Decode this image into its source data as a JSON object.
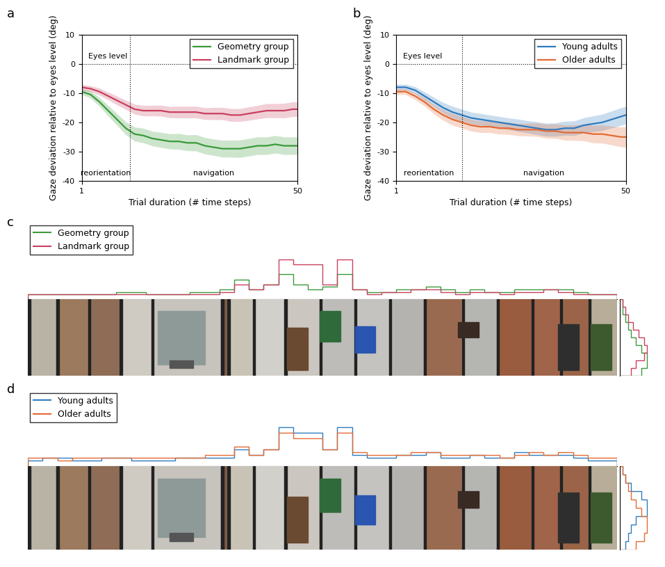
{
  "chart_data": [
    {
      "type": "line",
      "panel_label": "a",
      "x_label": "Trial duration (# time steps)",
      "y_label": "Gaze deviation relative to eyes level (deg)",
      "x": [
        1,
        3,
        5,
        7,
        9,
        11,
        13,
        15,
        17,
        19,
        21,
        23,
        25,
        27,
        29,
        31,
        33,
        35,
        37,
        39,
        41,
        43,
        45,
        47,
        49,
        50
      ],
      "xlim": [
        1,
        50
      ],
      "xticks": [
        1,
        50
      ],
      "ylim": [
        -40,
        10
      ],
      "yticks": [
        -40,
        -30,
        -20,
        -10,
        0,
        10
      ],
      "reference_line": {
        "y": 0,
        "label": "Eyes level",
        "line_style": "dotted"
      },
      "phase_boundary": 12,
      "phases": [
        "reorientation",
        "navigation"
      ],
      "legend": "upper right",
      "series": [
        {
          "name": "Geometry group",
          "color": "#3a9a3a",
          "values": [
            -9.5,
            -10.5,
            -13,
            -16,
            -19,
            -22,
            -24,
            -24.5,
            -25.5,
            -26,
            -26.5,
            -26.5,
            -27,
            -27,
            -28,
            -28.5,
            -29,
            -29,
            -29,
            -28.5,
            -28,
            -28,
            -27.5,
            -28,
            -28,
            -28
          ],
          "errors": [
            1,
            1.2,
            1.5,
            1.8,
            2,
            2.2,
            2.4,
            2.5,
            2.5,
            2.6,
            2.6,
            2.7,
            2.7,
            2.8,
            2.8,
            2.8,
            2.9,
            2.9,
            3,
            3,
            3,
            3,
            3,
            3,
            3,
            3
          ]
        },
        {
          "name": "Landmark group",
          "color": "#c8405e",
          "values": [
            -8,
            -8.5,
            -9.5,
            -11,
            -12.5,
            -14,
            -15.5,
            -16,
            -16,
            -16,
            -16.5,
            -16.5,
            -16.5,
            -16.5,
            -17,
            -17,
            -17,
            -17.5,
            -17.5,
            -17,
            -16.5,
            -16,
            -16,
            -16,
            -15.5,
            -15.5
          ],
          "errors": [
            1,
            1,
            1.2,
            1.3,
            1.5,
            1.6,
            1.7,
            1.8,
            1.8,
            1.9,
            1.9,
            2,
            2,
            2,
            2,
            2.1,
            2.1,
            2.2,
            2.2,
            2.3,
            2.3,
            2.4,
            2.4,
            2.5,
            2.5,
            2.5
          ]
        }
      ]
    },
    {
      "type": "line",
      "panel_label": "b",
      "x_label": "Trial duration (# time steps)",
      "y_label": "Gaze deviation relative to eyes level (deg)",
      "x": [
        1,
        3,
        5,
        7,
        9,
        11,
        13,
        15,
        17,
        19,
        21,
        23,
        25,
        27,
        29,
        31,
        33,
        35,
        37,
        39,
        41,
        43,
        45,
        47,
        49,
        50
      ],
      "xlim": [
        1,
        50
      ],
      "xticks": [
        1,
        50
      ],
      "ylim": [
        -40,
        10
      ],
      "yticks": [
        -40,
        -30,
        -20,
        -10,
        0,
        10
      ],
      "reference_line": {
        "y": 0,
        "label": "Eyes level",
        "line_style": "dotted"
      },
      "phase_boundary": 15,
      "phases": [
        "reorientation",
        "navigation"
      ],
      "legend": "upper right",
      "series": [
        {
          "name": "Young adults",
          "color": "#2f7bbf",
          "values": [
            -8,
            -8,
            -9,
            -11,
            -13,
            -15,
            -16.5,
            -17.5,
            -18.5,
            -19,
            -19.5,
            -20,
            -20.5,
            -21,
            -21.5,
            -22,
            -22.5,
            -22.5,
            -22,
            -22,
            -21,
            -20.5,
            -20,
            -19,
            -18,
            -17.5
          ],
          "errors": [
            1,
            1,
            1.2,
            1.4,
            1.6,
            1.8,
            2,
            2,
            2,
            2,
            2,
            2,
            2,
            2.1,
            2.1,
            2.2,
            2.2,
            2.3,
            2.4,
            2.5,
            2.6,
            2.7,
            2.8,
            2.9,
            3,
            3
          ]
        },
        {
          "name": "Older adults",
          "color": "#e36a33",
          "values": [
            -9.5,
            -9.5,
            -11,
            -13,
            -15.5,
            -17.5,
            -19,
            -20,
            -21,
            -21.5,
            -21.5,
            -22,
            -22,
            -22.5,
            -22.5,
            -22.5,
            -23,
            -23,
            -23.5,
            -23.5,
            -23.5,
            -24,
            -24,
            -24.5,
            -25,
            -25
          ],
          "errors": [
            1,
            1,
            1.2,
            1.4,
            1.6,
            1.8,
            2,
            2,
            2,
            2,
            2,
            2,
            2.1,
            2.1,
            2.2,
            2.3,
            2.4,
            2.5,
            2.6,
            2.7,
            2.8,
            3,
            3.1,
            3.2,
            3.4,
            3.5
          ]
        }
      ]
    },
    {
      "type": "histogram",
      "panel_label": "c",
      "tick_labels": false,
      "legend": "upper left",
      "bins": [
        0,
        1,
        2,
        3,
        4,
        5,
        6,
        7,
        8,
        9,
        10,
        11,
        12,
        13,
        14,
        15,
        16,
        17,
        18,
        19,
        20,
        21,
        22,
        23,
        24,
        25,
        26,
        27,
        28,
        29,
        30,
        31,
        32,
        33,
        34,
        35,
        36,
        37,
        38,
        39,
        40
      ],
      "side_bins": [
        0,
        1,
        2,
        3,
        4,
        5,
        6,
        7,
        8,
        9,
        10
      ],
      "series": [
        {
          "name": "Geometry group",
          "color": "#3a9a3a",
          "values": [
            1,
            1,
            1,
            1,
            1,
            1,
            1.5,
            1.5,
            1,
            1,
            1,
            1.5,
            1.5,
            2,
            4,
            2,
            3,
            5,
            3,
            2,
            2.5,
            5,
            2,
            1.5,
            1.5,
            2,
            2,
            2.5,
            2,
            1.5,
            2,
            1.5,
            1.5,
            2,
            2,
            2,
            2,
            1.5,
            1,
            1
          ],
          "side_values": [
            0.5,
            0.5,
            1,
            1.5,
            2,
            3,
            4,
            5,
            5,
            4
          ]
        },
        {
          "name": "Landmark group",
          "color": "#c8405e",
          "values": [
            1,
            1,
            1,
            1,
            1,
            1,
            1,
            1,
            1,
            1,
            1,
            1,
            1,
            1.5,
            3,
            2,
            3,
            8,
            7,
            7,
            3,
            8,
            2,
            1,
            1.5,
            1.5,
            2,
            2,
            1.5,
            1,
            1.5,
            1.5,
            1,
            1.5,
            1.5,
            2,
            1.5,
            1,
            1,
            1
          ],
          "side_values": [
            0.5,
            1,
            1.5,
            2.5,
            3.5,
            4.5,
            5,
            4.5,
            3,
            2
          ]
        }
      ]
    },
    {
      "type": "histogram",
      "panel_label": "d",
      "tick_labels": false,
      "legend": "upper left",
      "bins": [
        0,
        1,
        2,
        3,
        4,
        5,
        6,
        7,
        8,
        9,
        10,
        11,
        12,
        13,
        14,
        15,
        16,
        17,
        18,
        19,
        20,
        21,
        22,
        23,
        24,
        25,
        26,
        27,
        28,
        29,
        30,
        31,
        32,
        33,
        34,
        35,
        36,
        37,
        38,
        39,
        40
      ],
      "side_bins": [
        0,
        1,
        2,
        3,
        4,
        5,
        6,
        7,
        8,
        9,
        10
      ],
      "series": [
        {
          "name": "Young adults",
          "color": "#2f7bbf",
          "values": [
            1,
            1.5,
            1.5,
            1,
            1,
            1.5,
            1.5,
            1,
            1,
            1,
            1.5,
            1.5,
            1.5,
            1.5,
            3,
            2,
            3,
            7,
            6,
            6,
            3,
            7,
            2,
            1.5,
            1.5,
            2,
            2,
            2.5,
            1.5,
            1.5,
            2,
            1.5,
            1.5,
            2.5,
            2,
            2,
            2,
            1.5,
            1,
            1
          ],
          "side_values": [
            0.5,
            1,
            2,
            4,
            5,
            5,
            3,
            2,
            1.5,
            1
          ]
        },
        {
          "name": "Older adults",
          "color": "#e36a33",
          "values": [
            1.5,
            1.5,
            1,
            1.5,
            1.5,
            1.5,
            1.5,
            1.5,
            1.5,
            1.5,
            1.5,
            1.5,
            2,
            2,
            3.5,
            2,
            3,
            6,
            5,
            5,
            3,
            6,
            2.5,
            2,
            2,
            2,
            2.5,
            2.5,
            2,
            2,
            2,
            2,
            1.5,
            2,
            2.5,
            2,
            2.5,
            2,
            1.5,
            1.5
          ],
          "side_values": [
            0.5,
            1,
            1.5,
            2,
            3,
            4,
            5,
            5,
            4.5,
            3
          ]
        }
      ]
    }
  ]
}
